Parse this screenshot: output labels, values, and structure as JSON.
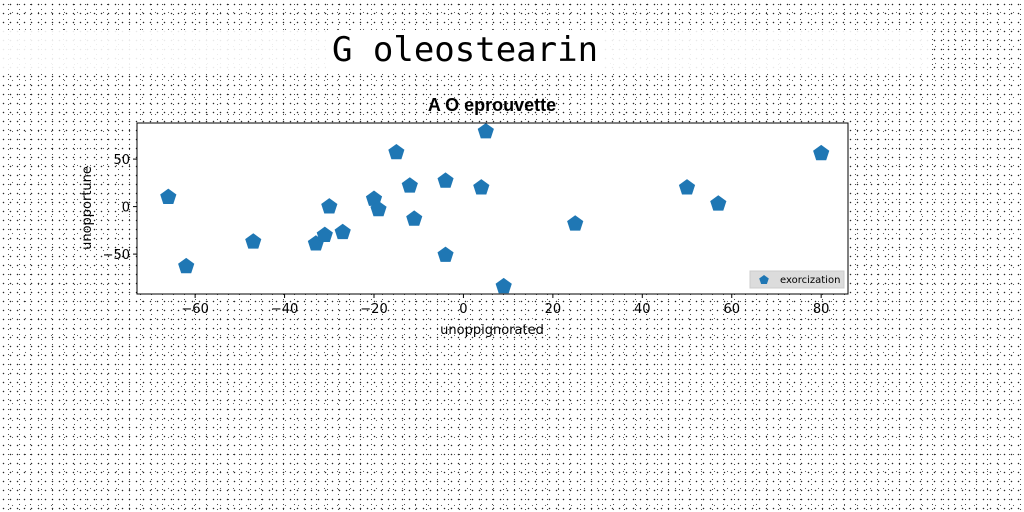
{
  "page": {
    "title": "G oleostearin"
  },
  "chart_data": {
    "type": "scatter",
    "title": "A O eprouvette",
    "xlabel": "unoppignorated",
    "ylabel": "unopportune",
    "xlim": [
      -73,
      86
    ],
    "ylim": [
      -92,
      88
    ],
    "xticks": [
      -60,
      -40,
      -20,
      0,
      20,
      40,
      60,
      80
    ],
    "yticks": [
      -50,
      0,
      50
    ],
    "grid": false,
    "legend_position": "lower-right",
    "marker": "pentagon",
    "color": "#1f77b4",
    "series": [
      {
        "name": "exorcization",
        "points": [
          [
            -66,
            10
          ],
          [
            -62,
            -63
          ],
          [
            -47,
            -37
          ],
          [
            -33,
            -39
          ],
          [
            -31,
            -30
          ],
          [
            -30,
            0
          ],
          [
            -27,
            -27
          ],
          [
            -20,
            8
          ],
          [
            -19,
            -3
          ],
          [
            -15,
            57
          ],
          [
            -12,
            22
          ],
          [
            -11,
            -13
          ],
          [
            -4,
            27
          ],
          [
            -4,
            -51
          ],
          [
            4,
            20
          ],
          [
            5,
            79
          ],
          [
            9,
            -84
          ],
          [
            25,
            -18
          ],
          [
            50,
            20
          ],
          [
            57,
            3
          ],
          [
            80,
            56
          ]
        ]
      }
    ]
  }
}
